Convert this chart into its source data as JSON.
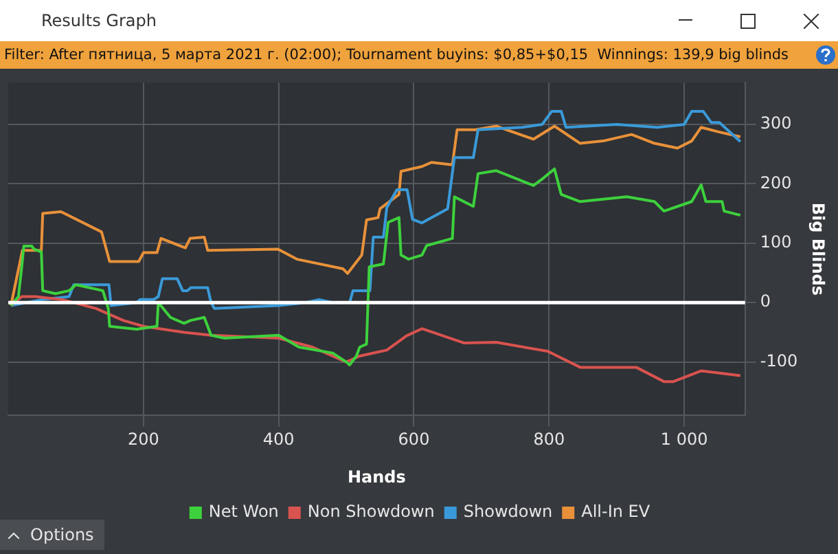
{
  "chart_data": {
    "type": "line",
    "title": "Results Graph",
    "subtitle": "Filter: After пятница, 5 марта 2021 г. (02:00); Tournament buyins: $0,85+$0,15  Winnings: 139,9 big blinds",
    "annotations": [
      "Options"
    ],
    "xlabel": "Hands",
    "ylabel": "Big Blinds",
    "xlim": [
      0,
      1090
    ],
    "xticks": [
      200,
      400,
      600,
      800,
      {
        "value": 1000,
        "label": "1 000"
      }
    ],
    "ylim": [
      -190,
      370
    ],
    "yticks": [
      -100,
      0,
      100,
      200,
      300
    ],
    "grid": true,
    "legend": "bottom",
    "marker": "none",
    "line_style": "solid",
    "ref_lines": [
      {
        "axis": "y",
        "value": 0,
        "color": "#ffffff"
      }
    ],
    "series": [
      {
        "name": "Net Won",
        "color": "#3dd13d",
        "x": [
          4,
          15,
          20,
          23,
          35,
          38,
          49,
          51,
          70,
          90,
          100,
          140,
          148,
          150,
          190,
          220,
          222,
          240,
          260,
          270,
          290,
          300,
          320,
          400,
          430,
          480,
          500,
          505,
          515,
          520,
          530,
          534,
          555,
          562,
          578,
          581,
          592,
          612,
          619,
          657,
          660,
          688,
          695,
          722,
          777,
          791,
          808,
          818,
          846,
          915,
          956,
          970,
          1011,
          1025,
          1032,
          1056,
          1059,
          1083
        ],
        "values": [
          -5,
          10,
          60,
          95,
          95,
          90,
          85,
          20,
          15,
          20,
          30,
          20,
          -10,
          -40,
          -45,
          -40,
          0,
          -25,
          -35,
          -30,
          -25,
          -55,
          -60,
          -55,
          -75,
          -85,
          -100,
          -105,
          -90,
          -75,
          -70,
          60,
          65,
          135,
          143,
          80,
          73,
          80,
          96,
          108,
          178,
          162,
          217,
          222,
          197,
          209,
          225,
          182,
          170,
          178,
          170,
          154,
          170,
          198,
          170,
          170,
          154,
          147
        ]
      },
      {
        "name": "Non Showdown",
        "color": "#d9534f",
        "x": [
          4,
          20,
          40,
          80,
          130,
          170,
          200,
          260,
          300,
          400,
          450,
          500,
          520,
          560,
          589,
          612,
          674,
          722,
          798,
          846,
          929,
          970,
          984,
          1025,
          1083
        ],
        "values": [
          -5,
          10,
          10,
          5,
          -10,
          -30,
          -40,
          -50,
          -55,
          -60,
          -75,
          -100,
          -90,
          -80,
          -56,
          -44,
          -68,
          -67,
          -82,
          -109,
          -109,
          -133,
          -133,
          -115,
          -123
        ]
      },
      {
        "name": "Showdown",
        "color": "#3a9ad9",
        "x": [
          4,
          50,
          90,
          97,
          149,
          152,
          190,
          195,
          215,
          222,
          228,
          250,
          258,
          265,
          270,
          295,
          300,
          305,
          400,
          440,
          460,
          480,
          505,
          510,
          535,
          540,
          555,
          560,
          575,
          590,
          598,
          612,
          650,
          660,
          688,
          695,
          760,
          790,
          804,
          818,
          825,
          900,
          960,
          1000,
          1011,
          1028,
          1040,
          1052,
          1083
        ],
        "values": [
          -5,
          5,
          10,
          30,
          30,
          -5,
          0,
          5,
          5,
          10,
          40,
          40,
          20,
          20,
          25,
          25,
          0,
          -10,
          -5,
          0,
          5,
          0,
          0,
          20,
          20,
          110,
          110,
          160,
          190,
          190,
          140,
          134,
          158,
          244,
          244,
          291,
          295,
          300,
          322,
          322,
          295,
          300,
          295,
          300,
          322,
          322,
          303,
          303,
          271
        ]
      },
      {
        "name": "All-In EV",
        "color": "#e8913a",
        "x": [
          4,
          21,
          49,
          51,
          78,
          138,
          150,
          193,
          200,
          220,
          226,
          262,
          269,
          290,
          295,
          399,
          427,
          495,
          502,
          523,
          530,
          547,
          550,
          578,
          581,
          612,
          626,
          657,
          664,
          691,
          722,
          777,
          808,
          846,
          880,
          922,
          956,
          990,
          1011,
          1025,
          1052,
          1083
        ],
        "values": [
          -5,
          88,
          88,
          150,
          153,
          119,
          69,
          69,
          84,
          84,
          108,
          92,
          108,
          110,
          88,
          90,
          73,
          57,
          49,
          80,
          139,
          143,
          158,
          182,
          221,
          229,
          236,
          232,
          291,
          291,
          297,
          275,
          297,
          268,
          272,
          283,
          268,
          260,
          272,
          295,
          287,
          279
        ]
      }
    ]
  }
}
